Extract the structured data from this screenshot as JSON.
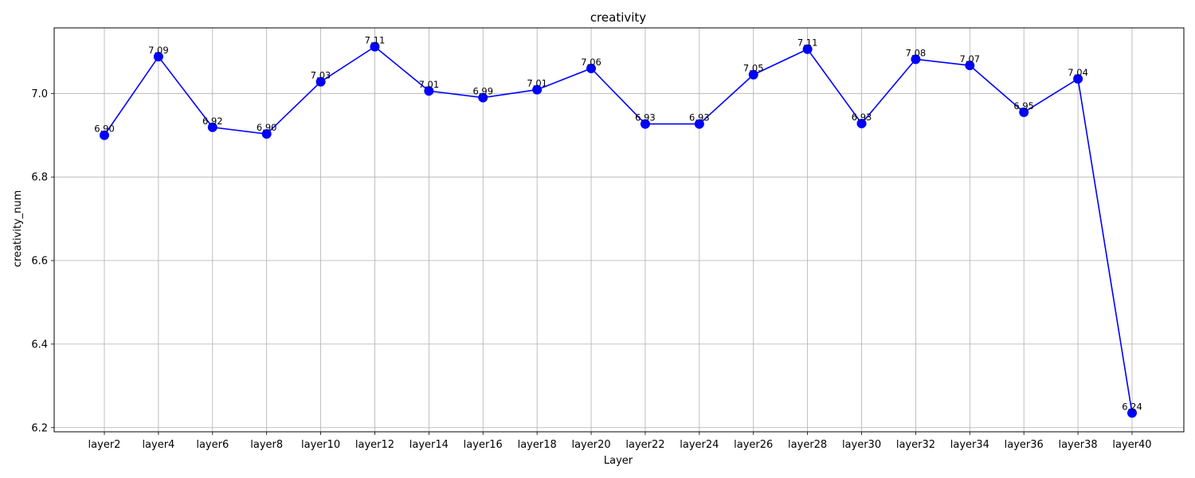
{
  "chart_data": {
    "type": "line",
    "title": "creativity",
    "xlabel": "Layer",
    "ylabel": "creativity_num",
    "categories": [
      "layer2",
      "layer4",
      "layer6",
      "layer8",
      "layer10",
      "layer12",
      "layer14",
      "layer16",
      "layer18",
      "layer20",
      "layer22",
      "layer24",
      "layer26",
      "layer28",
      "layer30",
      "layer32",
      "layer34",
      "layer36",
      "layer38",
      "layer40"
    ],
    "values": [
      6.9,
      7.088,
      6.919,
      6.903,
      7.028,
      7.112,
      7.006,
      6.99,
      7.009,
      7.06,
      6.927,
      6.927,
      7.045,
      7.106,
      6.928,
      7.082,
      7.067,
      6.955,
      7.035,
      6.235
    ],
    "data_labels": [
      "6.90",
      "7.09",
      "6.92",
      "6.90",
      "7.03",
      "7.11",
      "7.01",
      "6.99",
      "7.01",
      "7.06",
      "6.93",
      "6.93",
      "7.05",
      "7.11",
      "6.93",
      "7.08",
      "7.07",
      "6.95",
      "7.04",
      "6.24"
    ],
    "ylim": [
      6.19,
      7.157
    ],
    "yticks": [
      6.2,
      6.4,
      6.6,
      6.8,
      7.0
    ],
    "ytick_labels": [
      "6.2",
      "6.4",
      "6.6",
      "6.8",
      "7.0"
    ],
    "grid": true,
    "line_color": "#0000ff",
    "marker_color": "#0000ff",
    "grid_color": "#b0b0b0"
  }
}
